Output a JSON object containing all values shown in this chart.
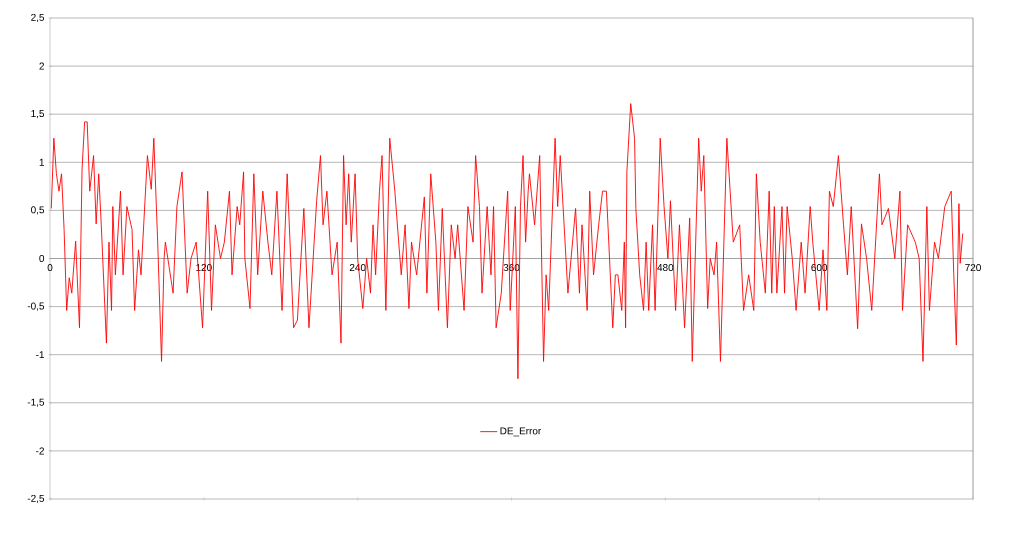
{
  "chart_data": {
    "type": "line",
    "x": [
      1,
      3,
      5,
      7,
      9,
      11,
      13,
      15,
      17,
      20,
      23,
      25,
      27,
      29,
      31,
      34,
      36,
      38,
      40,
      44,
      46,
      48,
      49,
      51,
      55,
      57,
      60,
      64,
      66,
      69,
      71,
      76,
      79,
      81,
      84,
      87,
      89,
      90,
      96,
      99,
      103,
      107,
      110,
      114,
      116,
      119,
      123,
      126,
      129,
      133,
      136,
      140,
      142,
      146,
      148,
      151,
      152,
      156,
      159,
      162,
      166,
      170,
      173,
      177,
      181,
      185,
      190,
      193,
      198,
      202,
      208,
      211,
      213,
      216,
      220,
      224,
      227,
      229,
      231,
      233,
      235,
      238,
      240,
      244,
      247,
      250,
      252,
      254,
      257,
      259,
      262,
      265,
      269,
      272,
      274,
      277,
      280,
      282,
      286,
      292,
      294,
      297,
      301,
      303,
      306,
      310,
      313,
      316,
      318,
      323,
      326,
      330,
      332,
      335,
      337,
      341,
      344,
      346,
      348,
      352,
      357,
      359,
      363,
      365,
      367,
      369,
      371,
      373,
      374,
      378,
      382,
      385,
      387,
      389,
      394,
      396,
      398,
      404,
      410,
      413,
      415,
      419,
      421,
      424,
      428,
      431,
      434,
      439,
      441,
      443,
      446,
      448,
      449,
      450,
      453,
      456,
      457,
      460,
      463,
      465,
      467,
      470,
      472,
      476,
      479,
      482,
      484,
      488,
      491,
      495,
      499,
      501,
      506,
      508,
      510,
      513,
      515,
      518,
      520,
      523,
      528,
      533,
      538,
      541,
      545,
      549,
      551,
      554,
      558,
      561,
      563,
      565,
      567,
      571,
      573,
      575,
      579,
      582,
      586,
      589,
      593,
      595,
      600,
      603,
      606,
      608,
      611,
      615,
      619,
      622,
      625,
      630,
      633,
      637,
      641,
      647,
      649,
      654,
      659,
      663,
      665,
      669,
      675,
      678,
      681,
      684,
      686,
      690,
      693,
      698,
      703,
      705,
      707,
      709,
      710,
      712
    ],
    "series": [
      {
        "name": "DE_Error",
        "color": "#ff0000",
        "values": [
          0.52,
          1.25,
          0.88,
          0.7,
          0.88,
          0.3,
          -0.54,
          -0.2,
          -0.36,
          0.18,
          -0.72,
          0.93,
          1.42,
          1.42,
          0.7,
          1.07,
          0.36,
          0.88,
          0.35,
          -0.88,
          0.17,
          -0.54,
          0.54,
          -0.17,
          0.7,
          -0.17,
          0.54,
          0.3,
          -0.54,
          0.09,
          -0.17,
          1.07,
          0.72,
          1.25,
          0.17,
          -1.07,
          0,
          0.17,
          -0.36,
          0.54,
          0.9,
          -0.36,
          0,
          0.17,
          -0.17,
          -0.72,
          0.7,
          -0.54,
          0.35,
          0,
          0.17,
          0.7,
          -0.17,
          0.54,
          0.35,
          0.9,
          0,
          -0.52,
          0.88,
          -0.17,
          0.7,
          0.17,
          -0.17,
          0.7,
          -0.54,
          0.88,
          -0.72,
          -0.64,
          0.52,
          -0.72,
          0.6,
          1.07,
          0.35,
          0.7,
          -0.17,
          0.17,
          -0.88,
          1.07,
          0.35,
          0.88,
          0.17,
          0.88,
          0,
          -0.52,
          0,
          -0.36,
          0.35,
          -0.17,
          0.7,
          1.07,
          -0.54,
          1.25,
          0.7,
          0.17,
          -0.17,
          0.35,
          -0.52,
          0.17,
          -0.17,
          0.64,
          -0.36,
          0.88,
          0.17,
          -0.54,
          0.52,
          -0.72,
          0.35,
          0,
          0.35,
          -0.54,
          0.54,
          0.17,
          1.07,
          0.54,
          -0.36,
          0.54,
          -0.17,
          0.54,
          -0.72,
          -0.36,
          0.7,
          -0.54,
          0.54,
          -1.25,
          0.54,
          1.07,
          0.17,
          0.7,
          0.88,
          0.35,
          1.07,
          -1.07,
          -0.17,
          -0.54,
          1.25,
          0.54,
          1.07,
          -0.36,
          0.52,
          -0.36,
          0.35,
          -0.54,
          0.7,
          -0.17,
          0.35,
          0.7,
          0.7,
          -0.72,
          -0.17,
          -0.17,
          -0.54,
          0.17,
          -0.72,
          0.9,
          1.61,
          1.25,
          0.52,
          -0.17,
          -0.54,
          0.17,
          -0.54,
          0.35,
          -0.54,
          1.25,
          0.54,
          0,
          0.6,
          -0.54,
          0.35,
          -0.72,
          0.42,
          -1.07,
          1.25,
          0.7,
          1.07,
          -0.52,
          0,
          -0.17,
          0.17,
          -1.07,
          1.25,
          0.17,
          0.35,
          -0.54,
          -0.17,
          -0.54,
          0.88,
          0.17,
          -0.36,
          0.7,
          -0.36,
          0.54,
          -0.36,
          0.54,
          -0.36,
          0.54,
          0,
          -0.54,
          0.17,
          -0.36,
          0.54,
          0.17,
          -0.54,
          0.09,
          -0.54,
          0.7,
          0.54,
          1.07,
          0.35,
          -0.17,
          0.54,
          -0.73,
          0.36,
          0,
          -0.54,
          0.88,
          0.35,
          0.52,
          0,
          0.7,
          -0.54,
          0.35,
          0.17,
          0,
          -1.07,
          0.54,
          -0.54,
          0.17,
          0,
          0.54,
          0.7,
          -0.17,
          -0.9,
          0.57,
          -0.05,
          0.26
        ]
      }
    ],
    "xlim": [
      0,
      720
    ],
    "xticks": [
      0,
      120,
      240,
      360,
      480,
      600,
      720
    ],
    "ylim": [
      -2.5,
      2.5
    ],
    "yticks": [
      {
        "value": -2.5,
        "label": "-2,5"
      },
      {
        "value": -2,
        "label": "-2"
      },
      {
        "value": -1.5,
        "label": "-1,5"
      },
      {
        "value": -1,
        "label": "-1"
      },
      {
        "value": -0.5,
        "label": "-0,5"
      },
      {
        "value": 0,
        "label": "0"
      },
      {
        "value": 0.5,
        "label": "0,5"
      },
      {
        "value": 1,
        "label": "1"
      },
      {
        "value": 1.5,
        "label": "1,5"
      },
      {
        "value": 2,
        "label": "2"
      },
      {
        "value": 2.5,
        "label": "2,5"
      }
    ],
    "grid": "y",
    "legend": "bottom",
    "marker": "none",
    "line_style": "solid"
  }
}
